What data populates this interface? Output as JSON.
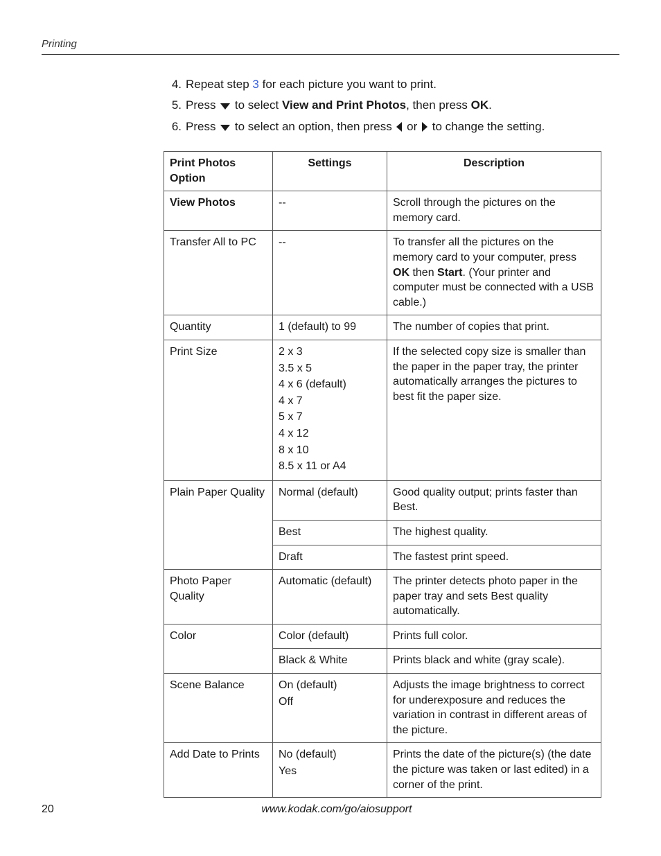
{
  "header": {
    "section": "Printing"
  },
  "steps": [
    {
      "n": "4.",
      "pre": "Repeat step ",
      "link": "3",
      "post": " for each picture you want to print."
    },
    {
      "n": "5.",
      "pre": "Press ",
      "icon": "down",
      "mid": " to select ",
      "bold1": "View and Print Photos",
      "mid2": ", then press ",
      "bold2": "OK",
      "post": "."
    },
    {
      "n": "6.",
      "pre": "Press ",
      "icon": "down",
      "mid": " to select an option, then press ",
      "icon2": "left",
      "or": " or ",
      "icon3": "right",
      "post": "  to change the setting."
    }
  ],
  "table": {
    "headers": {
      "option": "Print Photos Option",
      "settings": "Settings",
      "description": "Description"
    },
    "rows": [
      {
        "option": "View Photos",
        "option_bold": true,
        "settings": "--",
        "desc": "Scroll through the pictures on the memory card."
      },
      {
        "option": "Transfer All to PC",
        "settings": "--",
        "desc_parts": [
          "To transfer all the pictures on the memory card to your computer, press ",
          {
            "b": "OK"
          },
          " then ",
          {
            "b": "Start"
          },
          ". (Your printer and computer must be connected with a USB cable.)"
        ]
      },
      {
        "option": "Quantity",
        "settings": "1 (default) to 99",
        "desc": "The number of copies that print."
      },
      {
        "option": "Print Size",
        "settings_lines": [
          "2 x 3",
          "3.5 x 5",
          "4 x 6 (default)",
          "4 x 7",
          "5 x 7",
          "4 x 12",
          "8 x 10",
          "8.5 x 11 or A4"
        ],
        "desc": "If the selected copy size is smaller than the paper in the paper tray, the printer automatically arranges the pictures to best fit the paper size."
      },
      {
        "option": "Plain Paper Quality",
        "rowspan": 3,
        "sub": [
          {
            "settings": "Normal (default)",
            "desc": "Good quality output; prints faster than Best."
          },
          {
            "settings": "Best",
            "desc": "The highest quality."
          },
          {
            "settings": "Draft",
            "desc": "The fastest print speed."
          }
        ]
      },
      {
        "option": "Photo Paper Quality",
        "settings": "Automatic (default)",
        "desc": "The printer detects photo paper in the paper tray and sets Best quality automatically."
      },
      {
        "option": "Color",
        "rowspan": 2,
        "sub": [
          {
            "settings": "Color (default)",
            "desc": "Prints full color."
          },
          {
            "settings": "Black & White",
            "desc": "Prints black and white (gray scale)."
          }
        ]
      },
      {
        "option": "Scene Balance",
        "settings_lines": [
          "On (default)",
          "Off"
        ],
        "desc": "Adjusts the image brightness to correct for underexposure and reduces the variation in contrast in different areas of the picture."
      },
      {
        "option": "Add Date to Prints",
        "settings_lines": [
          "No (default)",
          "Yes"
        ],
        "desc": "Prints the date of the picture(s) (the date the picture was taken or last edited) in a corner of the print."
      }
    ]
  },
  "footer": {
    "page": "20",
    "url": "www.kodak.com/go/aiosupport"
  }
}
